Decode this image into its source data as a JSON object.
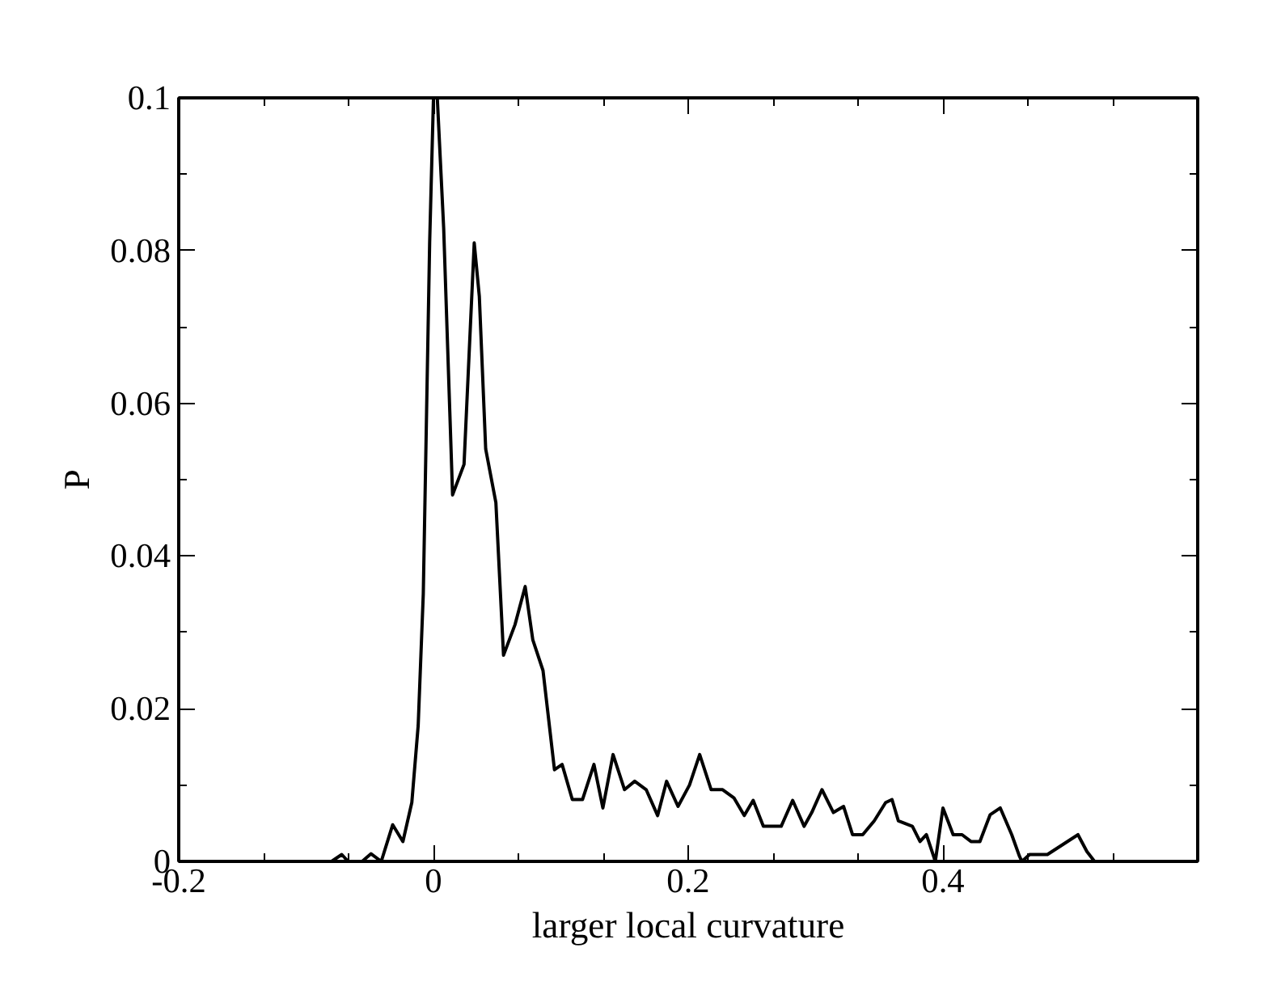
{
  "chart_data": {
    "type": "line",
    "xlabel": "larger local curvature",
    "ylabel": "P",
    "xlim": [
      -0.2,
      0.6
    ],
    "xticks": [
      -0.2,
      0,
      0.2,
      0.4
    ],
    "ylim": [
      0,
      0.1
    ],
    "yticks": [
      0,
      0.02,
      0.04,
      0.06,
      0.08,
      0.1
    ],
    "grid": false,
    "marker": "none",
    "line_style": "solid",
    "series": [
      {
        "color": "#000000",
        "x": [
          -0.08,
          -0.072,
          -0.067,
          -0.056,
          -0.049,
          -0.041,
          -0.032,
          -0.024,
          -0.017,
          -0.012,
          -0.008,
          -0.003,
          0,
          0.003,
          0.008,
          0.015,
          0.024,
          0.032,
          0.036,
          0.041,
          0.049,
          0.055,
          0.064,
          0.072,
          0.078,
          0.086,
          0.095,
          0.101,
          0.109,
          0.117,
          0.126,
          0.133,
          0.141,
          0.15,
          0.158,
          0.167,
          0.176,
          0.183,
          0.192,
          0.201,
          0.209,
          0.218,
          0.227,
          0.236,
          0.244,
          0.251,
          0.259,
          0.267,
          0.273,
          0.282,
          0.291,
          0.297,
          0.305,
          0.314,
          0.322,
          0.329,
          0.337,
          0.346,
          0.355,
          0.36,
          0.365,
          0.376,
          0.382,
          0.387,
          0.394,
          0.4,
          0.408,
          0.415,
          0.422,
          0.429,
          0.437,
          0.445,
          0.454,
          0.46,
          0.462,
          0.468,
          0.482,
          0.506,
          0.513,
          0.519
        ],
        "values": [
          0,
          0.0009,
          0,
          0,
          0.001,
          0,
          0.0048,
          0.0026,
          0.0077,
          0.0178,
          0.035,
          0.081,
          0.1,
          0.1,
          0.083,
          0.048,
          0.052,
          0.081,
          0.074,
          0.054,
          0.047,
          0.027,
          0.031,
          0.036,
          0.029,
          0.025,
          0.012,
          0.0127,
          0.0081,
          0.0081,
          0.0127,
          0.007,
          0.014,
          0.0094,
          0.0105,
          0.0094,
          0.006,
          0.0105,
          0.0072,
          0.01,
          0.014,
          0.0094,
          0.0094,
          0.0083,
          0.006,
          0.008,
          0.0046,
          0.0046,
          0.0046,
          0.008,
          0.0046,
          0.0064,
          0.0094,
          0.0064,
          0.0072,
          0.0035,
          0.0035,
          0.0053,
          0.0077,
          0.0081,
          0.0053,
          0.0046,
          0.0026,
          0.0035,
          0,
          0.007,
          0.0035,
          0.0035,
          0.0026,
          0.0026,
          0.0061,
          0.007,
          0.0035,
          0.0007,
          0,
          0.0009,
          0.0009,
          0.0035,
          0.0013,
          0
        ]
      }
    ]
  }
}
